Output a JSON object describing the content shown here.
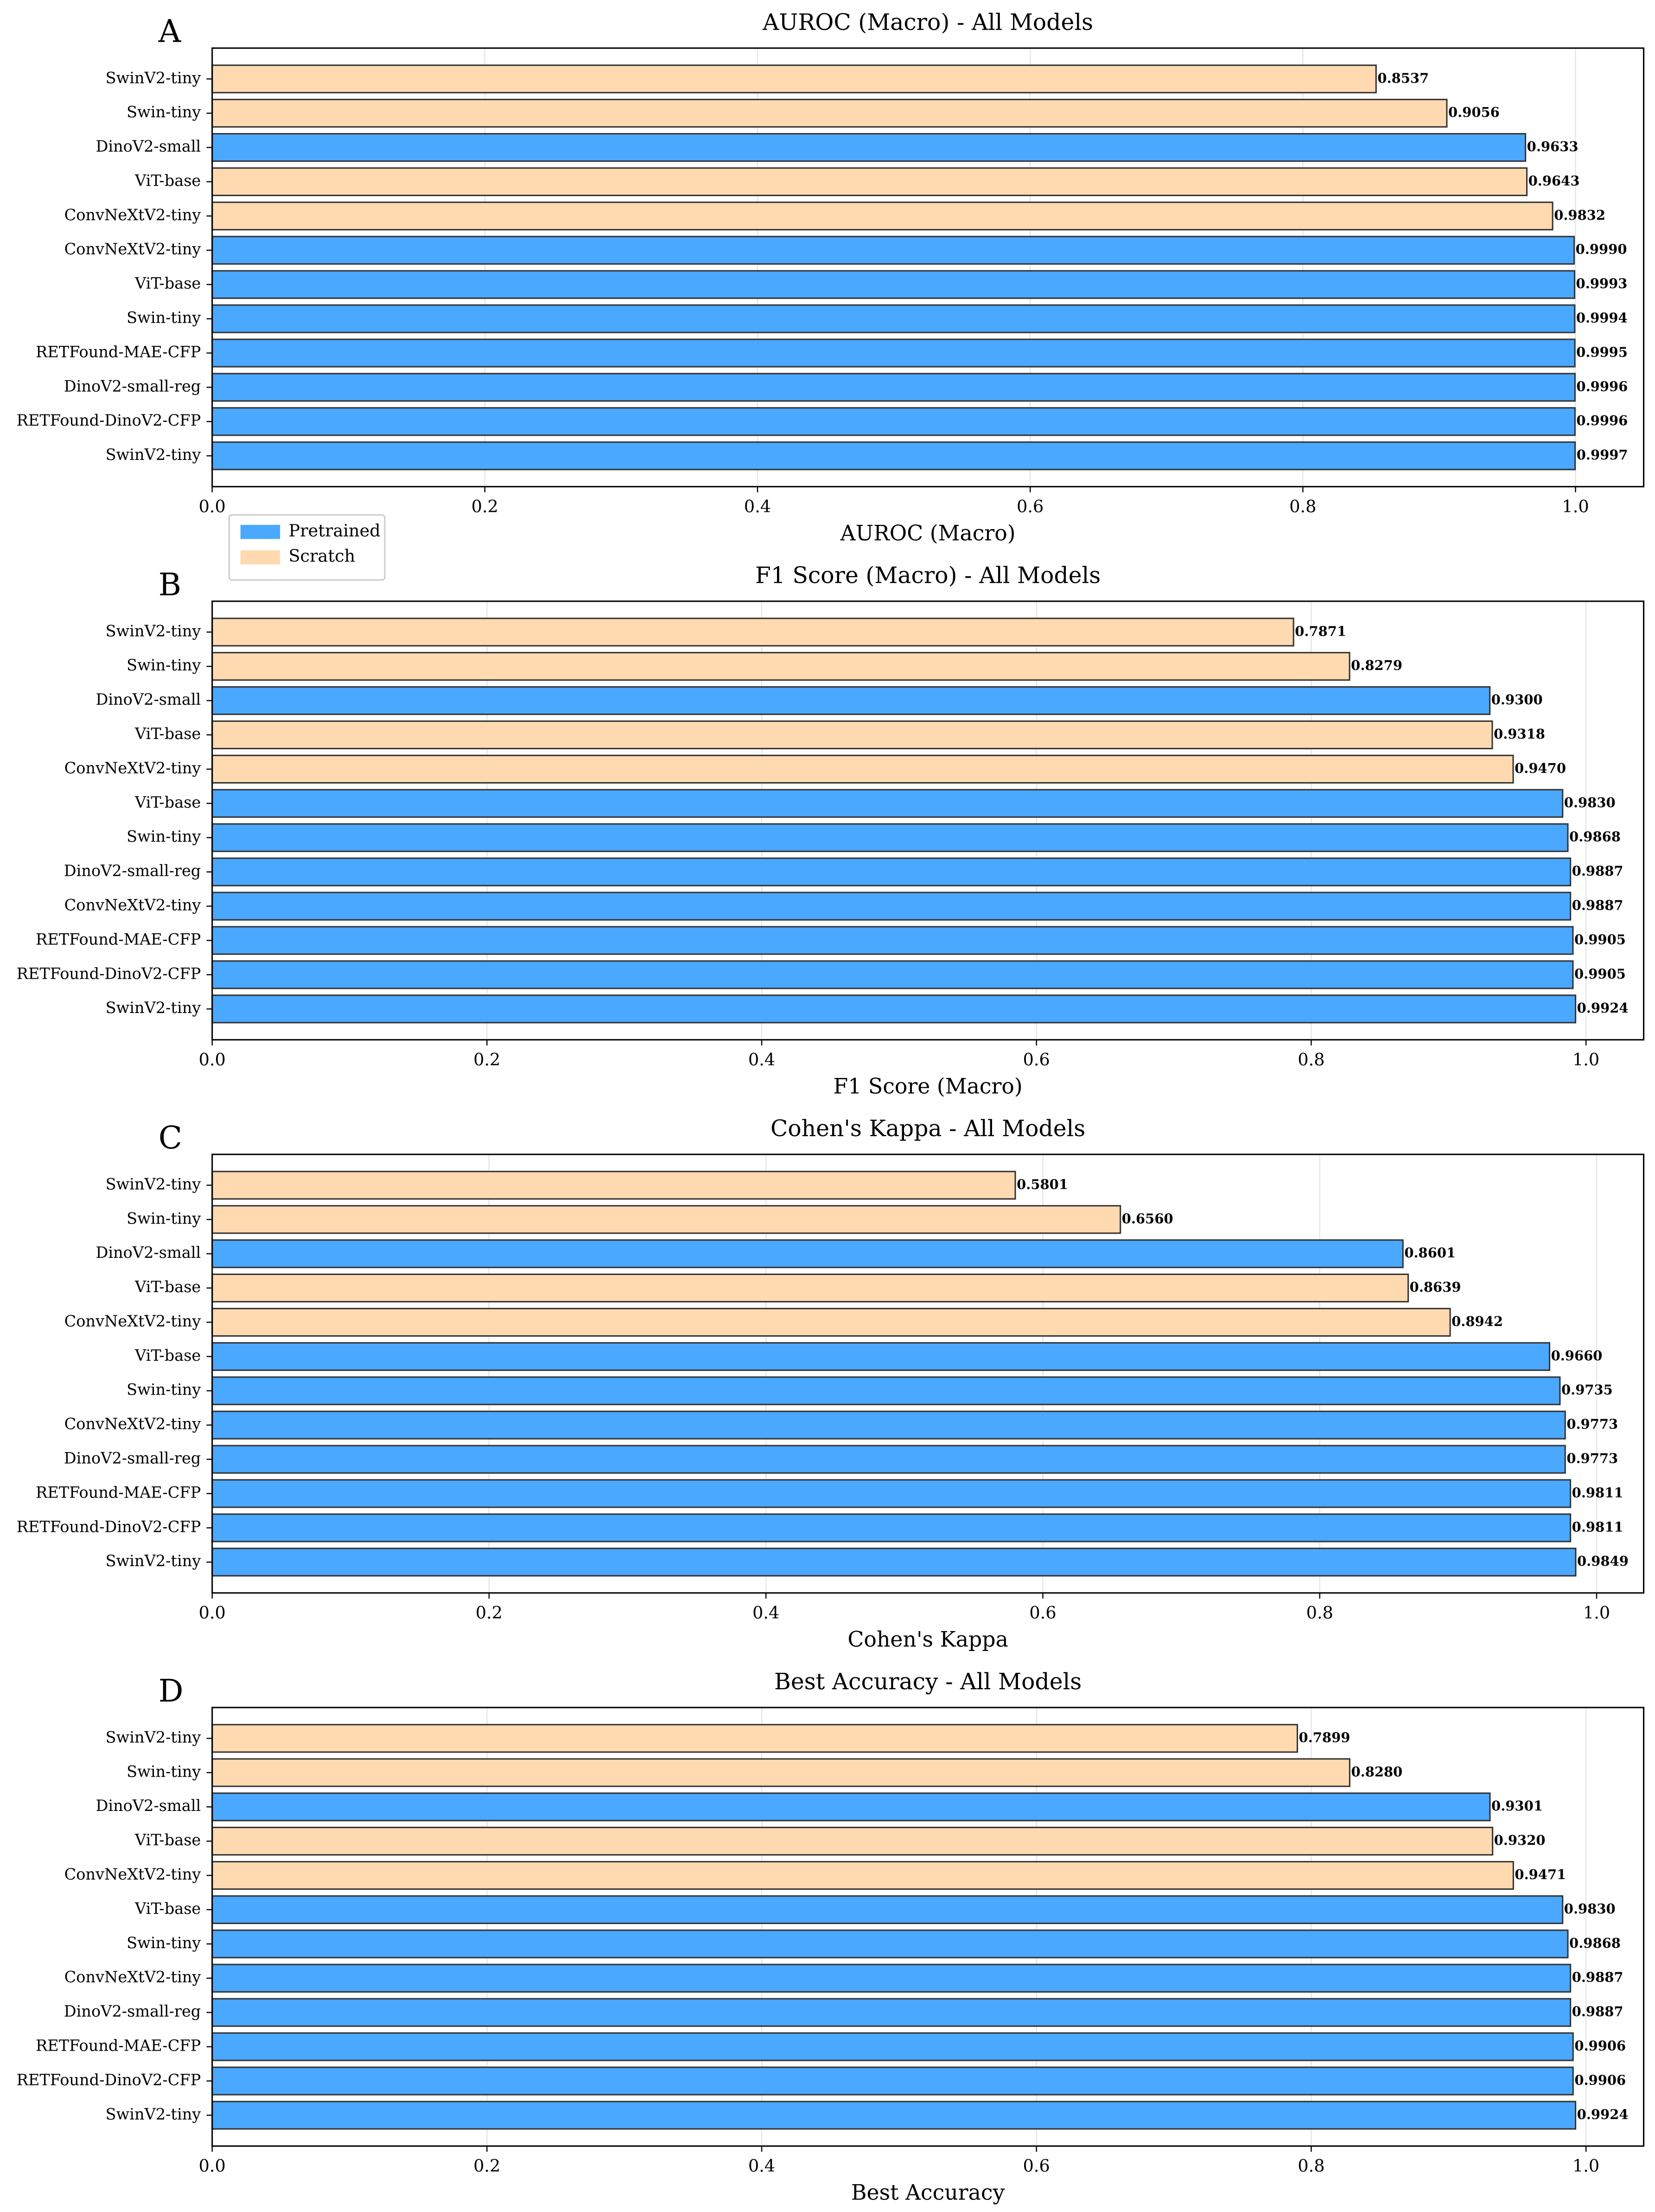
{
  "chart_data": [
    {
      "type": "bar",
      "orientation": "horizontal",
      "panel": "A",
      "title": "AUROC (Macro) - All Models",
      "xlabel": "AUROC (Macro)",
      "categories": [
        "SwinV2-tiny",
        "Swin-tiny",
        "DinoV2-small",
        "ViT-base",
        "ConvNeXtV2-tiny",
        "ConvNeXtV2-tiny",
        "ViT-base",
        "Swin-tiny",
        "RETFound-MAE-CFP",
        "DinoV2-small-reg",
        "RETFound-DinoV2-CFP",
        "SwinV2-tiny"
      ],
      "series": [
        {
          "name": "Pretrained",
          "color": "#4aa8ff",
          "values": [
            null,
            null,
            0.9633,
            null,
            null,
            0.999,
            0.9993,
            0.9994,
            0.9995,
            0.9996,
            0.9996,
            0.9997
          ],
          "value_labels": [
            null,
            null,
            "0.9633",
            null,
            null,
            "0.9990",
            "0.9993",
            "0.9994",
            "0.9995",
            "0.9996",
            "0.9996",
            "0.9997"
          ]
        },
        {
          "name": "Scratch",
          "color": "#ffdab0",
          "values": [
            0.8537,
            0.9056,
            null,
            0.9643,
            0.9832,
            null,
            null,
            null,
            null,
            null,
            null,
            null
          ],
          "value_labels": [
            "0.8537",
            "0.9056",
            null,
            "0.9643",
            "0.9832",
            null,
            null,
            null,
            null,
            null,
            null,
            null
          ]
        }
      ],
      "xlim": [
        0,
        1.05
      ],
      "xticks": [
        {
          "value": 0,
          "label": "0.0"
        },
        0.2,
        0.4,
        0.6,
        0.8,
        {
          "value": 1,
          "label": "1.0"
        }
      ],
      "grid": true,
      "legend": "lower left"
    },
    {
      "type": "bar",
      "orientation": "horizontal",
      "panel": "B",
      "title": "F1 Score (Macro) - All Models",
      "xlabel": "F1 Score (Macro)",
      "categories": [
        "SwinV2-tiny",
        "Swin-tiny",
        "DinoV2-small",
        "ViT-base",
        "ConvNeXtV2-tiny",
        "ViT-base",
        "Swin-tiny",
        "DinoV2-small-reg",
        "ConvNeXtV2-tiny",
        "RETFound-MAE-CFP",
        "RETFound-DinoV2-CFP",
        "SwinV2-tiny"
      ],
      "series": [
        {
          "color": "#4aa8ff",
          "values": [
            null,
            null,
            0.93,
            null,
            null,
            0.983,
            0.9868,
            0.9887,
            0.9887,
            0.9905,
            0.9905,
            0.9924
          ],
          "value_labels": [
            null,
            null,
            "0.9300",
            null,
            null,
            "0.9830",
            "0.9868",
            "0.9887",
            "0.9887",
            "0.9905",
            "0.9905",
            "0.9924"
          ]
        },
        {
          "color": "#ffdab0",
          "values": [
            0.7871,
            0.8279,
            null,
            0.9318,
            0.947,
            null,
            null,
            null,
            null,
            null,
            null,
            null
          ],
          "value_labels": [
            "0.7871",
            "0.8279",
            null,
            "0.9318",
            "0.9470",
            null,
            null,
            null,
            null,
            null,
            null,
            null
          ]
        }
      ],
      "xlim": [
        0,
        1.042
      ],
      "xticks": [
        {
          "value": 0,
          "label": "0.0"
        },
        0.2,
        0.4,
        0.6,
        0.8,
        {
          "value": 1,
          "label": "1.0"
        }
      ],
      "grid": true
    },
    {
      "type": "bar",
      "orientation": "horizontal",
      "panel": "C",
      "title": "Cohen's Kappa - All Models",
      "xlabel": "Cohen's Kappa",
      "categories": [
        "SwinV2-tiny",
        "Swin-tiny",
        "DinoV2-small",
        "ViT-base",
        "ConvNeXtV2-tiny",
        "ViT-base",
        "Swin-tiny",
        "ConvNeXtV2-tiny",
        "DinoV2-small-reg",
        "RETFound-MAE-CFP",
        "RETFound-DinoV2-CFP",
        "SwinV2-tiny"
      ],
      "series": [
        {
          "color": "#4aa8ff",
          "values": [
            null,
            null,
            0.8601,
            null,
            null,
            0.966,
            0.9735,
            0.9773,
            0.9773,
            0.9811,
            0.9811,
            0.9849
          ],
          "value_labels": [
            null,
            null,
            "0.8601",
            null,
            null,
            "0.9660",
            "0.9735",
            "0.9773",
            "0.9773",
            "0.9811",
            "0.9811",
            "0.9849"
          ]
        },
        {
          "color": "#ffdab0",
          "values": [
            0.5801,
            0.656,
            null,
            0.8639,
            0.8942,
            null,
            null,
            null,
            null,
            null,
            null,
            null
          ],
          "value_labels": [
            "0.5801",
            "0.6560",
            null,
            "0.8639",
            "0.8942",
            null,
            null,
            null,
            null,
            null,
            null,
            null
          ]
        }
      ],
      "xlim": [
        0,
        1.034
      ],
      "xticks": [
        {
          "value": 0,
          "label": "0.0"
        },
        0.2,
        0.4,
        0.6,
        0.8,
        {
          "value": 1,
          "label": "1.0"
        }
      ],
      "grid": true
    },
    {
      "type": "bar",
      "orientation": "horizontal",
      "panel": "D",
      "title": "Best Accuracy - All Models",
      "xlabel": "Best Accuracy",
      "categories": [
        "SwinV2-tiny",
        "Swin-tiny",
        "DinoV2-small",
        "ViT-base",
        "ConvNeXtV2-tiny",
        "ViT-base",
        "Swin-tiny",
        "ConvNeXtV2-tiny",
        "DinoV2-small-reg",
        "RETFound-MAE-CFP",
        "RETFound-DinoV2-CFP",
        "SwinV2-tiny"
      ],
      "series": [
        {
          "color": "#4aa8ff",
          "values": [
            null,
            null,
            0.9301,
            null,
            null,
            0.983,
            0.9868,
            0.9887,
            0.9887,
            0.9906,
            0.9906,
            0.9924
          ],
          "value_labels": [
            null,
            null,
            "0.9301",
            null,
            null,
            "0.9830",
            "0.9868",
            "0.9887",
            "0.9887",
            "0.9906",
            "0.9906",
            "0.9924"
          ]
        },
        {
          "color": "#ffdab0",
          "values": [
            0.7899,
            0.828,
            null,
            0.932,
            0.9471,
            null,
            null,
            null,
            null,
            null,
            null,
            null
          ],
          "value_labels": [
            "0.7899",
            "0.8280",
            null,
            "0.9320",
            "0.9471",
            null,
            null,
            null,
            null,
            null,
            null,
            null
          ]
        }
      ],
      "xlim": [
        0,
        1.042
      ],
      "xticks": [
        {
          "value": 0,
          "label": "0.0"
        },
        0.2,
        0.4,
        0.6,
        0.8,
        {
          "value": 1,
          "label": "1.0"
        }
      ],
      "grid": true
    }
  ]
}
